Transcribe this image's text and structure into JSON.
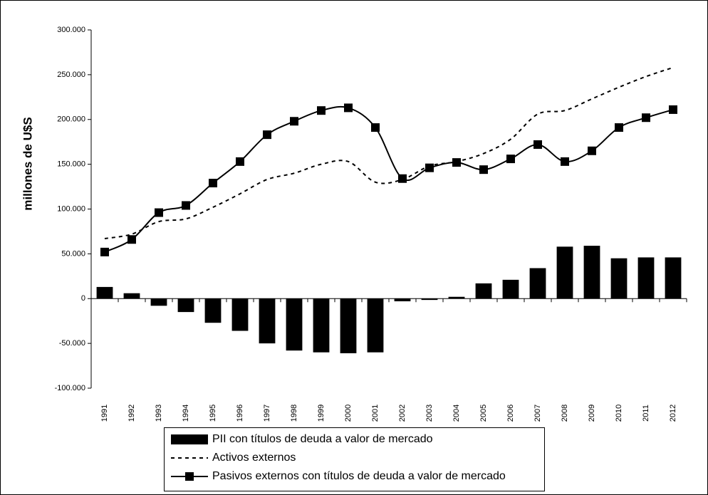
{
  "chart_data": {
    "type": "combo",
    "y_label": "millones de U$S",
    "categories": [
      "1991",
      "1992",
      "1993",
      "1994",
      "1995",
      "1996",
      "1997",
      "1998",
      "1999",
      "2000",
      "2001",
      "2002",
      "2003",
      "2004",
      "2005",
      "2006",
      "2007",
      "2008",
      "2009",
      "2010",
      "2011",
      "2012"
    ],
    "series": [
      {
        "name": "PII con títulos de deuda a valor de mercado",
        "type": "bar",
        "color": "#000000",
        "values": [
          13000,
          6000,
          -8000,
          -15000,
          -27000,
          -36000,
          -50000,
          -58000,
          -60000,
          -61000,
          -60000,
          -3000,
          -1500,
          2000,
          17000,
          21000,
          34000,
          58000,
          59000,
          45000,
          46000,
          46000
        ]
      },
      {
        "name": "Activos externos",
        "type": "line",
        "dashed": true,
        "color": "#000000",
        "values": [
          67000,
          72000,
          86000,
          89000,
          102000,
          117000,
          133000,
          140000,
          150000,
          153000,
          130000,
          133000,
          148000,
          153000,
          162000,
          178000,
          206000,
          210000,
          223000,
          236000,
          248000,
          258000
        ]
      },
      {
        "name": "Pasivos externos con títulos de deuda a valor de mercado",
        "type": "line",
        "markers": true,
        "color": "#000000",
        "values": [
          52000,
          66000,
          96000,
          104000,
          129000,
          153000,
          183000,
          198000,
          210000,
          213000,
          191000,
          134000,
          146000,
          152000,
          144000,
          156000,
          172000,
          153000,
          165000,
          191000,
          202000,
          211000
        ]
      }
    ],
    "ylim": [
      -100000,
      300000
    ],
    "yticks": [
      {
        "value": -100000,
        "label": "-100.000"
      },
      {
        "value": -50000,
        "label": "-50.000"
      },
      0,
      {
        "value": 50000,
        "label": "50.000"
      },
      {
        "value": 100000,
        "label": "100.000"
      },
      {
        "value": 150000,
        "label": "150.000"
      },
      {
        "value": 200000,
        "label": "200.000"
      },
      {
        "value": 250000,
        "label": "250.000"
      },
      {
        "value": 300000,
        "label": "300.000"
      }
    ],
    "grid": false,
    "legend": "bottom"
  }
}
